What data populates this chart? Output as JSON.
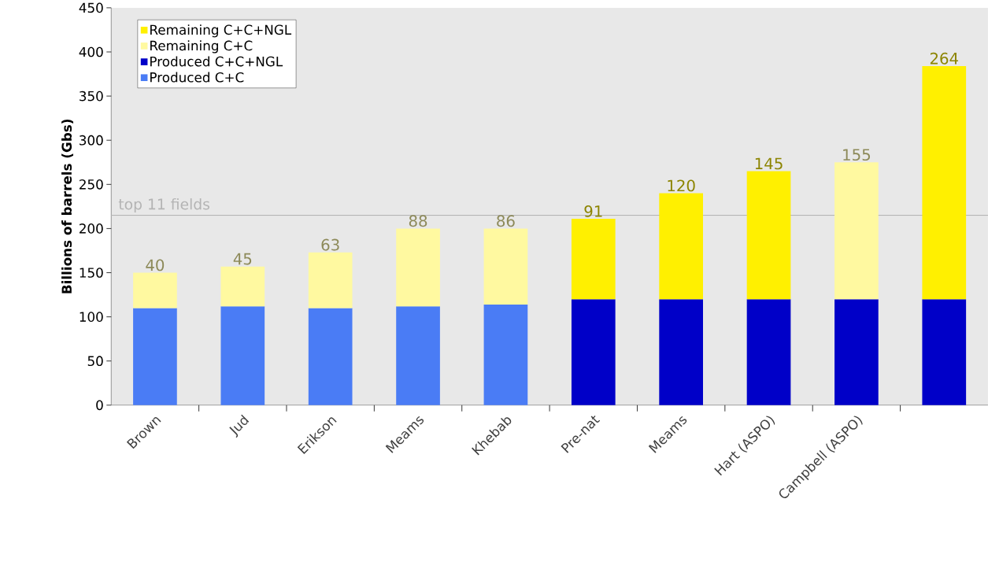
{
  "chart_data": {
    "type": "bar",
    "stacked": true,
    "ylabel": "Billions of barrels (Gbs)",
    "categories": [
      "Brown",
      "Jud",
      "Erikson",
      "Meams",
      "Khebab",
      "Pre-nat",
      "Meams",
      "Hart (ASPO)",
      "Campbell (ASPO)",
      null
    ],
    "series": [
      {
        "name": "Produced C+C",
        "color": "#4a7cf5",
        "values": [
          110,
          112,
          110,
          112,
          114,
          null,
          null,
          null,
          null,
          null
        ]
      },
      {
        "name": "Produced C+C+NGL",
        "color": "#0000c8",
        "values": [
          null,
          null,
          null,
          null,
          null,
          120,
          120,
          120,
          120,
          120
        ]
      },
      {
        "name": "Remaining C+C",
        "color": "#fff9a0",
        "values": [
          40,
          45,
          63,
          88,
          86,
          null,
          null,
          null,
          155,
          null
        ],
        "value_labels": [
          "40",
          "45",
          "63",
          "88",
          "86",
          null,
          null,
          null,
          "155",
          null
        ]
      },
      {
        "name": "Remaining C+C+NGL",
        "color": "#fff000",
        "values": [
          null,
          null,
          null,
          null,
          null,
          91,
          120,
          145,
          null,
          264
        ],
        "value_labels": [
          null,
          null,
          null,
          null,
          null,
          "91",
          "120",
          "145",
          null,
          "264"
        ]
      }
    ],
    "ylim": [
      0,
      450
    ],
    "yticks": [
      0,
      50,
      100,
      150,
      200,
      250,
      300,
      350,
      400,
      450
    ],
    "ref_lines": [
      {
        "axis": "y",
        "value": 215,
        "label": "top 11 fields",
        "color": "#b4b4b4"
      }
    ],
    "legend": "top left",
    "grid": false
  }
}
